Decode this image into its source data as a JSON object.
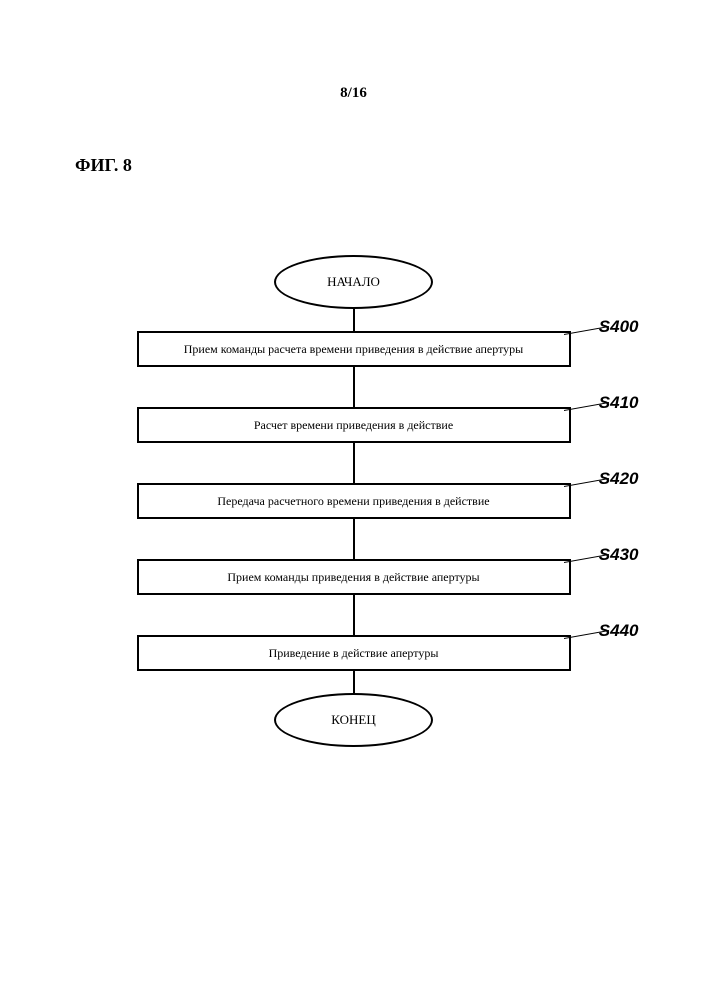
{
  "page_number": "8/16",
  "figure_label": "ФИГ. 8",
  "flowchart": {
    "type": "flowchart",
    "start_label": "НАЧАЛО",
    "end_label": "КОНЕЦ",
    "steps": [
      {
        "id": "S400",
        "text": "Прием команды расчета времени приведения в действие апертуры"
      },
      {
        "id": "S410",
        "text": "Расчет времени приведения в действие"
      },
      {
        "id": "S420",
        "text": "Передача расчетного времени приведения в действие"
      },
      {
        "id": "S430",
        "text": "Прием команды приведения в действие апертуры"
      },
      {
        "id": "S440",
        "text": "Приведение в действие апертуры"
      }
    ],
    "border_color": "#000000",
    "background_color": "#ffffff",
    "terminal_shape": "ellipse",
    "step_shape": "rectangle"
  }
}
